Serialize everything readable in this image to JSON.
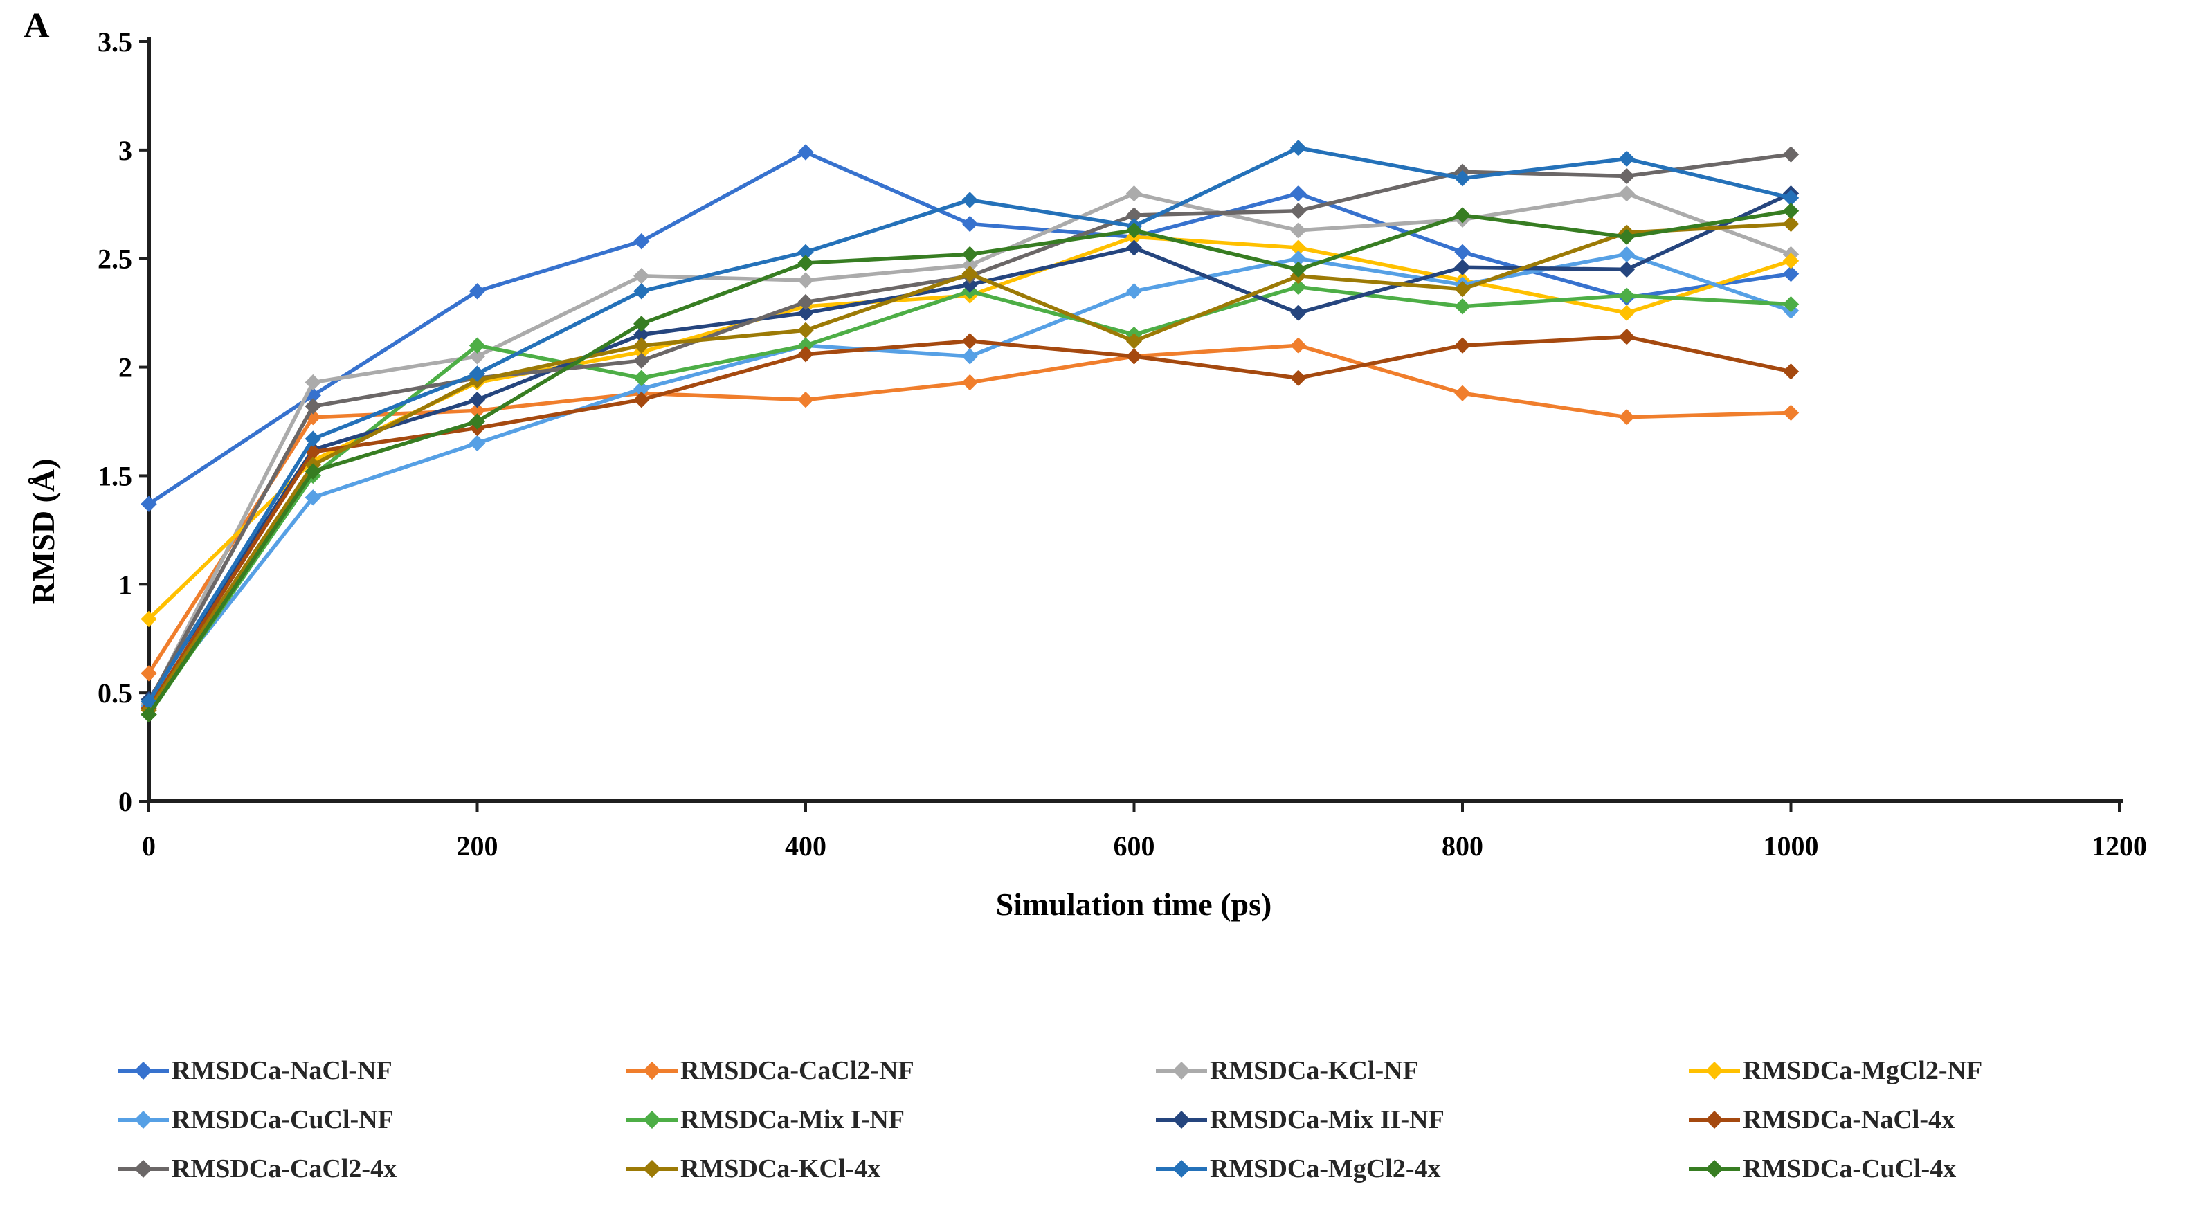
{
  "panel_label": "A",
  "chart_data": {
    "type": "line",
    "title": "",
    "xlabel": "Simulation time (ps)",
    "ylabel": "RMSD (Å)",
    "xlim": [
      0,
      1200
    ],
    "ylim": [
      0,
      3.5
    ],
    "x_tick_labels": [
      "0",
      "200",
      "400",
      "600",
      "800",
      "1000",
      "1200"
    ],
    "x_tick_values": [
      0,
      200,
      400,
      600,
      800,
      1000,
      1200
    ],
    "y_tick_labels": [
      "0",
      "0.5",
      "1",
      "1.5",
      "2",
      "2.5",
      "3",
      "3.5"
    ],
    "y_tick_values": [
      0,
      0.5,
      1,
      1.5,
      2,
      2.5,
      3,
      3.5
    ],
    "grid": false,
    "marker": "diamond",
    "legend_position": "bottom",
    "x": [
      0,
      100,
      200,
      300,
      400,
      500,
      600,
      700,
      800,
      900,
      1000
    ],
    "series": [
      {
        "name": "RMSDCa-NaCl-NF",
        "color": "#3772CE",
        "values": [
          1.37,
          1.87,
          2.35,
          2.58,
          2.99,
          2.66,
          2.6,
          2.8,
          2.53,
          2.32,
          2.43
        ]
      },
      {
        "name": "RMSDCa-CaCl2-NF",
        "color": "#F07E2C",
        "values": [
          0.59,
          1.77,
          1.8,
          1.88,
          1.85,
          1.93,
          2.05,
          2.1,
          1.88,
          1.77,
          1.79
        ]
      },
      {
        "name": "RMSDCa-KCl-NF",
        "color": "#ABABAB",
        "values": [
          0.45,
          1.93,
          2.05,
          2.42,
          2.4,
          2.47,
          2.8,
          2.63,
          2.68,
          2.8,
          2.52
        ]
      },
      {
        "name": "RMSDCa-MgCl2-NF",
        "color": "#FFC000",
        "values": [
          0.84,
          1.57,
          1.93,
          2.07,
          2.28,
          2.33,
          2.6,
          2.55,
          2.4,
          2.25,
          2.49
        ]
      },
      {
        "name": "RMSDCa-CuCl-NF",
        "color": "#56A0E5",
        "values": [
          0.44,
          1.4,
          1.65,
          1.9,
          2.1,
          2.05,
          2.35,
          2.5,
          2.38,
          2.52,
          2.26
        ]
      },
      {
        "name": "RMSDCa-Mix I-NF",
        "color": "#4DAE46",
        "values": [
          0.4,
          1.5,
          2.1,
          1.95,
          2.1,
          2.35,
          2.15,
          2.37,
          2.28,
          2.33,
          2.29
        ]
      },
      {
        "name": "RMSDCa-Mix II-NF",
        "color": "#25457E",
        "values": [
          0.47,
          1.62,
          1.85,
          2.15,
          2.25,
          2.38,
          2.55,
          2.25,
          2.46,
          2.45,
          2.8
        ]
      },
      {
        "name": "RMSDCa-NaCl-4x",
        "color": "#A5490F",
        "values": [
          0.43,
          1.61,
          1.72,
          1.85,
          2.06,
          2.12,
          2.05,
          1.95,
          2.1,
          2.14,
          1.98
        ]
      },
      {
        "name": "RMSDCa-CaCl2-4x",
        "color": "#6B6767",
        "values": [
          0.46,
          1.82,
          1.95,
          2.03,
          2.3,
          2.42,
          2.7,
          2.72,
          2.9,
          2.88,
          2.98
        ]
      },
      {
        "name": "RMSDCa-KCl-4x",
        "color": "#9C7A06",
        "values": [
          0.42,
          1.55,
          1.94,
          2.1,
          2.17,
          2.43,
          2.12,
          2.42,
          2.36,
          2.62,
          2.66
        ]
      },
      {
        "name": "RMSDCa-MgCl2-4x",
        "color": "#2471B9",
        "values": [
          0.46,
          1.67,
          1.97,
          2.35,
          2.53,
          2.77,
          2.65,
          3.01,
          2.87,
          2.96,
          2.78
        ]
      },
      {
        "name": "RMSDCa-CuCl-4x",
        "color": "#377D22",
        "values": [
          0.4,
          1.52,
          1.75,
          2.2,
          2.48,
          2.52,
          2.63,
          2.45,
          2.7,
          2.6,
          2.72
        ]
      }
    ]
  }
}
